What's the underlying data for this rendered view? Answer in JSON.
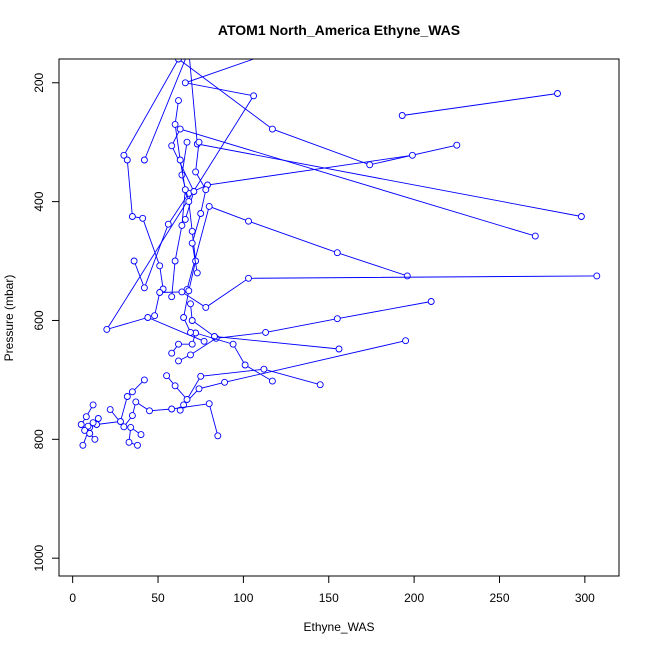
{
  "chart_data": {
    "type": "line",
    "title": "ATOM1 North_America Ethyne_WAS",
    "xlabel": "Ethyne_WAS",
    "ylabel": "Pressure (mbar)",
    "xlim": [
      -8,
      320
    ],
    "ylim": [
      1030,
      160
    ],
    "y_reversed": true,
    "x_ticks": [
      0,
      50,
      100,
      150,
      200,
      250,
      300
    ],
    "y_ticks": [
      200,
      400,
      600,
      800,
      1000
    ],
    "series_color": "#0000ff",
    "series": [
      {
        "x": [
          116,
          66,
          106,
          20,
          44,
          77
        ],
        "y": [
          150,
          200,
          222,
          615,
          595,
          635
        ]
      },
      {
        "x": [
          284,
          193
        ],
        "y": [
          218,
          255
        ]
      },
      {
        "x": [
          225,
          174,
          117,
          62,
          30
        ],
        "y": [
          305,
          338,
          278,
          160,
          322
        ]
      },
      {
        "x": [
          32,
          35,
          41,
          51,
          53
        ],
        "y": [
          330,
          425,
          428,
          508,
          547
        ]
      },
      {
        "x": [
          199,
          79,
          68,
          56,
          42,
          36
        ],
        "y": [
          322,
          372,
          386,
          438,
          545,
          500
        ]
      },
      {
        "x": [
          298,
          73,
          68,
          42
        ],
        "y": [
          425,
          303,
          146,
          330
        ]
      },
      {
        "x": [
          271,
          63,
          58,
          71,
          66
        ],
        "y": [
          458,
          278,
          306,
          383,
          430
        ]
      },
      {
        "x": [
          196,
          155,
          103,
          80,
          67
        ],
        "y": [
          525,
          486,
          433,
          408,
          548
        ]
      },
      {
        "x": [
          307,
          103,
          78,
          64,
          51,
          48
        ],
        "y": [
          525,
          529,
          578,
          552,
          553,
          592
        ]
      },
      {
        "x": [
          210,
          155,
          113,
          84,
          69,
          62
        ],
        "y": [
          568,
          597,
          620,
          630,
          658,
          668
        ]
      },
      {
        "x": [
          195,
          89,
          74,
          65,
          63
        ],
        "y": [
          634,
          704,
          715,
          742,
          751
        ]
      },
      {
        "x": [
          156,
          83,
          70,
          69
        ],
        "y": [
          648,
          627,
          600,
          572
        ]
      },
      {
        "x": [
          117,
          101,
          94,
          72,
          70,
          62,
          58
        ],
        "y": [
          702,
          675,
          640,
          621,
          640,
          640,
          655
        ]
      },
      {
        "x": [
          145,
          112,
          75,
          67,
          60,
          55
        ],
        "y": [
          708,
          682,
          694,
          733,
          710,
          693
        ]
      },
      {
        "x": [
          85,
          80,
          58,
          45,
          37,
          35,
          30,
          22
        ],
        "y": [
          794,
          740,
          749,
          752,
          737,
          760,
          779,
          750
        ]
      },
      {
        "x": [
          42,
          35,
          32,
          28,
          14,
          10,
          6
        ],
        "y": [
          700,
          720,
          728,
          770,
          775,
          780,
          810
        ]
      },
      {
        "x": [
          12,
          8,
          5,
          10
        ],
        "y": [
          742,
          762,
          775,
          790
        ]
      },
      {
        "x": [
          40,
          34,
          33,
          38
        ],
        "y": [
          792,
          780,
          805,
          810
        ]
      },
      {
        "x": [
          67,
          64,
          68,
          70,
          72,
          68,
          65,
          69
        ],
        "y": [
          300,
          355,
          400,
          450,
          500,
          550,
          595,
          620
        ]
      },
      {
        "x": [
          62,
          60,
          63,
          66,
          64,
          60,
          58
        ],
        "y": [
          230,
          270,
          330,
          380,
          440,
          500,
          560
        ]
      },
      {
        "x": [
          74,
          72,
          78,
          75,
          70,
          73
        ],
        "y": [
          300,
          350,
          380,
          420,
          470,
          520
        ]
      },
      {
        "x": [
          15,
          12,
          9,
          7,
          10,
          13
        ],
        "y": [
          765,
          772,
          778,
          785,
          790,
          800
        ]
      }
    ]
  }
}
